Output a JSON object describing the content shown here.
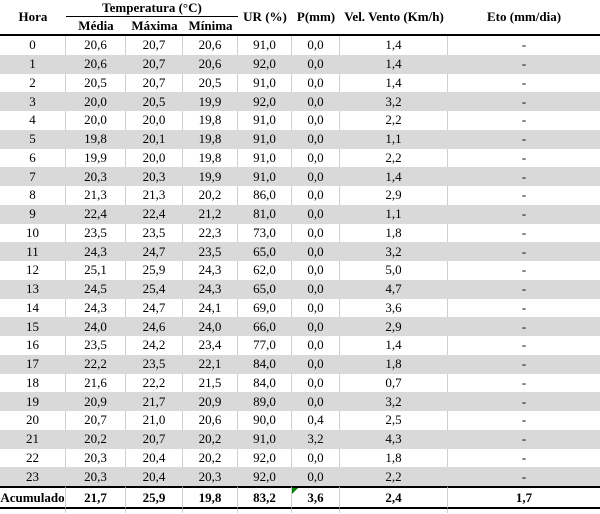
{
  "colors": {
    "band_gray": "#d9d9d9",
    "grid_gray": "#cfcfcf",
    "rule_black": "#000000",
    "flag_green": "#008000"
  },
  "table": {
    "header": {
      "hora": "Hora",
      "temperatura": "Temperatura (°C)",
      "media": "Média",
      "maxima": "Máxima",
      "minima": "Mínima",
      "ur": "UR (%)",
      "p": "P(mm)",
      "vento": "Vel. Vento (Km/h)",
      "eto": "Eto (mm/dia)"
    }
  },
  "chart_data": {
    "type": "table",
    "title": "",
    "columns": [
      "Hora",
      "Temperatura (°C) Média",
      "Temperatura (°C) Máxima",
      "Temperatura (°C) Mínima",
      "UR (%)",
      "P(mm)",
      "Vel. Vento (Km/h)",
      "Eto (mm/dia)"
    ],
    "rows": [
      [
        "0",
        "20,6",
        "20,7",
        "20,6",
        "91,0",
        "0,0",
        "1,4",
        "-"
      ],
      [
        "1",
        "20,6",
        "20,7",
        "20,6",
        "92,0",
        "0,0",
        "1,4",
        "-"
      ],
      [
        "2",
        "20,5",
        "20,7",
        "20,5",
        "91,0",
        "0,0",
        "1,4",
        "-"
      ],
      [
        "3",
        "20,0",
        "20,5",
        "19,9",
        "92,0",
        "0,0",
        "3,2",
        "-"
      ],
      [
        "4",
        "20,0",
        "20,0",
        "19,8",
        "91,0",
        "0,0",
        "2,2",
        "-"
      ],
      [
        "5",
        "19,8",
        "20,1",
        "19,8",
        "91,0",
        "0,0",
        "1,1",
        "-"
      ],
      [
        "6",
        "19,9",
        "20,0",
        "19,8",
        "91,0",
        "0,0",
        "2,2",
        "-"
      ],
      [
        "7",
        "20,3",
        "20,3",
        "19,9",
        "91,0",
        "0,0",
        "1,4",
        "-"
      ],
      [
        "8",
        "21,3",
        "21,3",
        "20,2",
        "86,0",
        "0,0",
        "2,9",
        "-"
      ],
      [
        "9",
        "22,4",
        "22,4",
        "21,2",
        "81,0",
        "0,0",
        "1,1",
        "-"
      ],
      [
        "10",
        "23,5",
        "23,5",
        "22,3",
        "73,0",
        "0,0",
        "1,8",
        "-"
      ],
      [
        "11",
        "24,3",
        "24,7",
        "23,5",
        "65,0",
        "0,0",
        "3,2",
        "-"
      ],
      [
        "12",
        "25,1",
        "25,9",
        "24,3",
        "62,0",
        "0,0",
        "5,0",
        "-"
      ],
      [
        "13",
        "24,5",
        "25,4",
        "24,3",
        "65,0",
        "0,0",
        "4,7",
        "-"
      ],
      [
        "14",
        "24,3",
        "24,7",
        "24,1",
        "69,0",
        "0,0",
        "3,6",
        "-"
      ],
      [
        "15",
        "24,0",
        "24,6",
        "24,0",
        "66,0",
        "0,0",
        "2,9",
        "-"
      ],
      [
        "16",
        "23,5",
        "24,2",
        "23,4",
        "77,0",
        "0,0",
        "1,4",
        "-"
      ],
      [
        "17",
        "22,2",
        "23,5",
        "22,1",
        "84,0",
        "0,0",
        "1,8",
        "-"
      ],
      [
        "18",
        "21,6",
        "22,2",
        "21,5",
        "84,0",
        "0,0",
        "0,7",
        "-"
      ],
      [
        "19",
        "20,9",
        "21,7",
        "20,9",
        "89,0",
        "0,0",
        "3,2",
        "-"
      ],
      [
        "20",
        "20,7",
        "21,0",
        "20,6",
        "90,0",
        "0,4",
        "2,5",
        "-"
      ],
      [
        "21",
        "20,2",
        "20,7",
        "20,2",
        "91,0",
        "3,2",
        "4,3",
        "-"
      ],
      [
        "22",
        "20,3",
        "20,4",
        "20,2",
        "92,0",
        "0,0",
        "1,8",
        "-"
      ],
      [
        "23",
        "20,3",
        "20,4",
        "20,3",
        "92,0",
        "0,0",
        "2,2",
        "-"
      ]
    ],
    "footer": [
      "Acumulado",
      "21,7",
      "25,9",
      "19,8",
      "83,2",
      "3,6",
      "2,4",
      "1,7"
    ]
  }
}
